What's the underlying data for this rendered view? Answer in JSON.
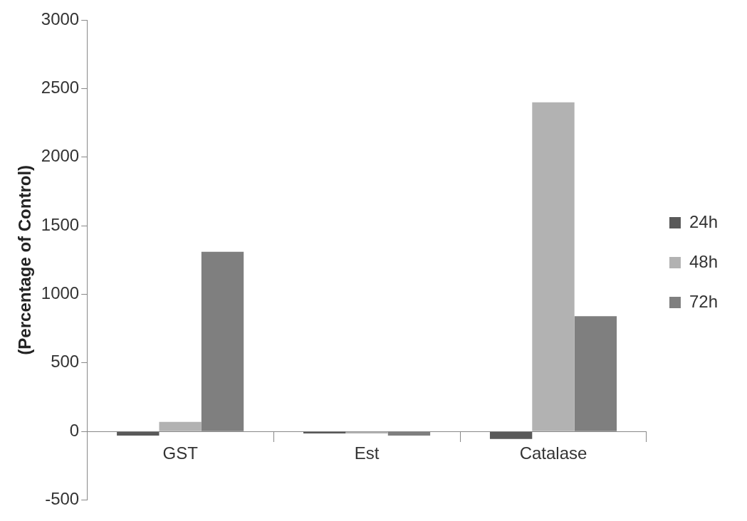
{
  "chart_data": {
    "type": "bar",
    "ylabel": "(Percentage of Control)",
    "categories": [
      "GST",
      "Est",
      "Catalase"
    ],
    "series": [
      {
        "name": "24h",
        "color": "#595959",
        "values": [
          -30,
          -15,
          -55
        ]
      },
      {
        "name": "48h",
        "color": "#b2b2b2",
        "values": [
          70,
          -15,
          2400
        ]
      },
      {
        "name": "72h",
        "color": "#7f7f7f",
        "values": [
          1310,
          -30,
          840
        ]
      }
    ],
    "ylim": [
      -500,
      3000
    ],
    "yticks": [
      -500,
      0,
      500,
      1000,
      1500,
      2000,
      2500,
      3000
    ],
    "grid": false,
    "legend": "right"
  }
}
